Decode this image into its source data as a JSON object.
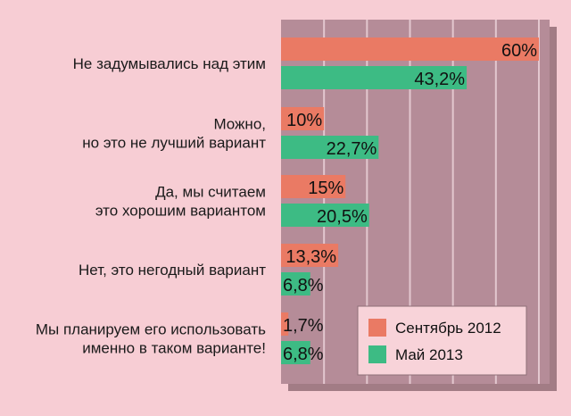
{
  "chart_data": {
    "type": "bar",
    "orientation": "horizontal",
    "categories": [
      [
        "Не задумывались над этим"
      ],
      [
        "Можно,",
        "но это не лучший вариант"
      ],
      [
        "Да, мы считаем",
        "это хорошим вариантом"
      ],
      [
        "Нет, это негодный вариант"
      ],
      [
        "Мы планируем его использовать",
        "именно в таком варианте!"
      ]
    ],
    "series": [
      {
        "name": "Сентябрь 2012",
        "color": "#ea7a64",
        "values": [
          60,
          10,
          15,
          13.3,
          1.7
        ],
        "labels": [
          "60%",
          "10%",
          "15%",
          "13,3%",
          "1,7%"
        ]
      },
      {
        "name": "Май 2013",
        "color": "#3dbb84",
        "values": [
          43.2,
          22.7,
          20.5,
          6.8,
          6.8
        ],
        "labels": [
          "43,2%",
          "22,7%",
          "20,5%",
          "6,8%",
          "6,8%"
        ]
      }
    ],
    "xlim": [
      0,
      60
    ],
    "grid": true,
    "legend_position": "bottom-right",
    "plot_background": "#b58c98"
  }
}
